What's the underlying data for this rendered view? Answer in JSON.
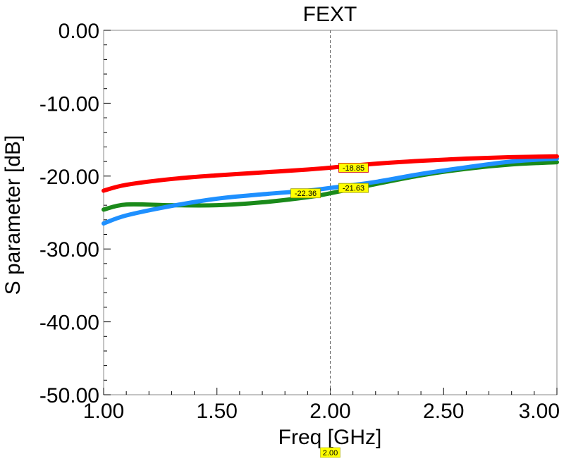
{
  "chart_data": {
    "type": "line",
    "title": "FEXT",
    "xlabel": "Freq [GHz]",
    "ylabel": "S parameter [dB]",
    "xlim": [
      1.0,
      3.0
    ],
    "ylim": [
      -50.0,
      0.0
    ],
    "x_ticks": [
      "1.00",
      "1.50",
      "2.00",
      "2.50",
      "3.00"
    ],
    "y_ticks": [
      "0.00",
      "-10.00",
      "-20.00",
      "-30.00",
      "-40.00",
      "-50.00"
    ],
    "grid": false,
    "legend": "none",
    "marker_line_label": "2.00",
    "series": [
      {
        "color": "#ff0000",
        "x": [
          1.0,
          1.1,
          1.3,
          1.5,
          1.7,
          1.9,
          2.0,
          2.2,
          2.4,
          2.6,
          2.8,
          3.0
        ],
        "values": [
          -22.0,
          -21.2,
          -20.4,
          -19.9,
          -19.5,
          -19.1,
          -18.85,
          -18.3,
          -17.9,
          -17.6,
          -17.4,
          -17.3
        ],
        "marker_label": "-18.85"
      },
      {
        "color": "#1e90ff",
        "x": [
          1.0,
          1.1,
          1.3,
          1.5,
          1.7,
          1.9,
          2.0,
          2.2,
          2.4,
          2.6,
          2.8,
          3.0
        ],
        "values": [
          -26.5,
          -25.4,
          -24.1,
          -23.1,
          -22.5,
          -22.0,
          -21.63,
          -20.8,
          -19.7,
          -18.8,
          -18.0,
          -17.6
        ],
        "marker_label": "-21.63"
      },
      {
        "color": "#1a8a1a",
        "x": [
          1.0,
          1.1,
          1.3,
          1.5,
          1.7,
          1.9,
          2.0,
          2.2,
          2.4,
          2.6,
          2.8,
          3.0
        ],
        "values": [
          -24.6,
          -23.9,
          -24.0,
          -24.0,
          -23.6,
          -22.9,
          -22.36,
          -21.1,
          -19.9,
          -19.0,
          -18.4,
          -18.1
        ],
        "marker_label": "-22.36"
      }
    ]
  }
}
